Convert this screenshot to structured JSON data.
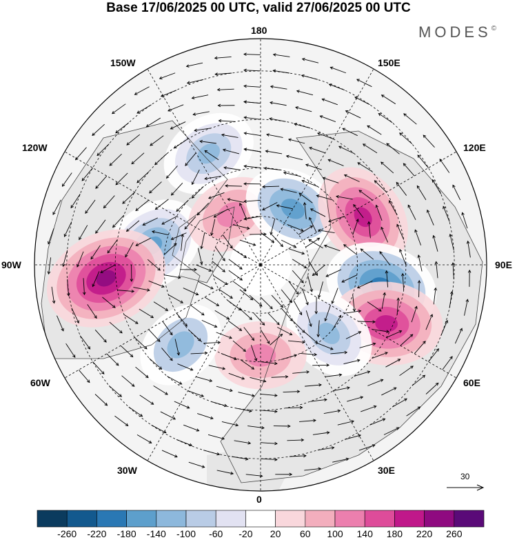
{
  "header": {
    "title": "Base 17/06/2025 00 UTC, valid 27/06/2025 00 UTC",
    "logo_text": "MODES",
    "logo_mark": "©"
  },
  "map": {
    "projection": "north-polar-stereographic",
    "longitude_labels": {
      "top": "180",
      "bottom": "0",
      "left": "90W",
      "right": "90E",
      "upper_left_1": "150W",
      "upper_left_2": "120W",
      "lower_left_1": "60W",
      "lower_left_2": "30W",
      "upper_right_1": "150E",
      "upper_right_2": "120E",
      "lower_right_1": "60E",
      "lower_right_2": "30E"
    },
    "anomaly_centers": [
      {
        "lon": -155,
        "lat": 52,
        "value": -140
      },
      {
        "lon": -100,
        "lat": 56,
        "value": -180
      },
      {
        "lon": -85,
        "lat": 42,
        "value": 240
      },
      {
        "lon": -150,
        "lat": 72,
        "value": 120
      },
      {
        "lon": 150,
        "lat": 70,
        "value": -150
      },
      {
        "lon": 115,
        "lat": 55,
        "value": 180
      },
      {
        "lon": 80,
        "lat": 52,
        "value": -200
      },
      {
        "lon": 65,
        "lat": 47,
        "value": 200
      },
      {
        "lon": 45,
        "lat": 60,
        "value": -140
      },
      {
        "lon": 0,
        "lat": 62,
        "value": 120
      },
      {
        "lon": -45,
        "lat": 55,
        "value": -120
      }
    ],
    "reference_vector_label": "30",
    "colors": {
      "land": "#e6e6e6",
      "ocean": "#f4f4f4",
      "gridline": "#000000",
      "coastline": "#444444"
    }
  },
  "colorbar": {
    "tick_labels": [
      "-260",
      "-220",
      "-180",
      "-140",
      "-100",
      "-60",
      "-20",
      "20",
      "60",
      "100",
      "140",
      "180",
      "220",
      "260"
    ],
    "bin_colors": [
      "#0b3b5e",
      "#13598e",
      "#2a78b4",
      "#5d9fcc",
      "#8db8dc",
      "#b9cce6",
      "#e2e2f2",
      "#ffffff",
      "#f9d7dc",
      "#f3aebd",
      "#ec7fae",
      "#de4c9a",
      "#c0188a",
      "#8f0a80",
      "#5a0a78"
    ]
  }
}
